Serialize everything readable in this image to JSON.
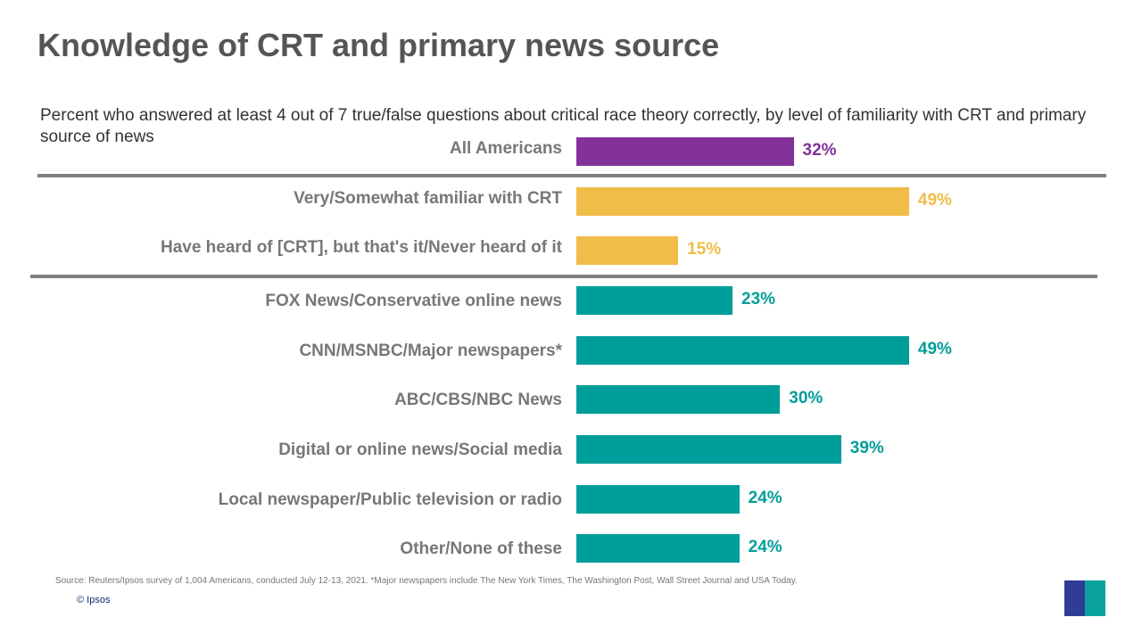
{
  "title": "Knowledge of CRT and primary news source",
  "subtitle": "Percent who answered at least 4 out of 7 true/false questions about critical race theory correctly, by level of familiarity with CRT and primary source of news",
  "colors": {
    "purple": "#83329a",
    "gold": "#f0bd48",
    "teal": "#009e9a",
    "separator": "#808080"
  },
  "chart_data": {
    "type": "bar",
    "orientation": "horizontal",
    "categories": [
      "All Americans",
      "Very/Somewhat  familiar with CRT",
      "Have heard of [CRT], but that's it/Never heard of it",
      "FOX News/Conservative online news",
      "CNN/MSNBC/Major  newspapers*",
      "ABC/CBS/NBC News",
      "Digital or online news/Social media",
      "Local newspaper/Public television or radio",
      "Other/None of these"
    ],
    "values": [
      32,
      49,
      15,
      23,
      49,
      30,
      39,
      24,
      24
    ],
    "labels": [
      "32%",
      "49%",
      "15%",
      "23%",
      "49%",
      "30%",
      "39%",
      "24%",
      "24%"
    ],
    "groups": [
      "purple",
      "gold",
      "gold",
      "teal",
      "teal",
      "teal",
      "teal",
      "teal",
      "teal"
    ],
    "unit": "%",
    "grid": false
  },
  "footer": {
    "source": "Source: Reuters/Ipsos survey of 1,004 Americans, conducted July 12-13, 2021. *Major newspapers include The New York Times, The Washington Post, Wall Street Journal and USA Today.",
    "copyright": "© Ipsos",
    "logo_text": "Ipsos"
  }
}
